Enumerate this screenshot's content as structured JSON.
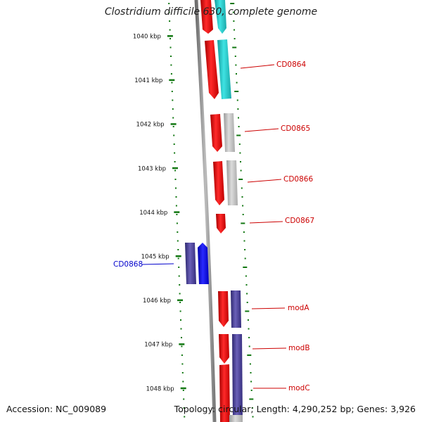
{
  "title": "Clostridium difficile 630, complete genome",
  "accession": "Accession: NC_009089",
  "topology": "Topology: circular; Length: 4,290,252 bp; Genes: 3,926",
  "colors": {
    "cds_forward": "#ee0000",
    "cyan_track": "#22cccc",
    "gray_track": "#bbbbbb",
    "navy_track": "#4a3f96",
    "blue_gene": "#0000ee",
    "tick_green": "#117711",
    "backbone": "#8c8c8c",
    "label_red": "#cc0000",
    "label_blue": "#0000cc"
  },
  "scale": {
    "ticks": [
      {
        "kbp": 1040,
        "label": "1040 kbp"
      },
      {
        "kbp": 1041,
        "label": "1041 kbp"
      },
      {
        "kbp": 1042,
        "label": "1042 kbp"
      },
      {
        "kbp": 1043,
        "label": "1043 kbp"
      },
      {
        "kbp": 1044,
        "label": "1044 kbp"
      },
      {
        "kbp": 1045,
        "label": "1045 kbp"
      },
      {
        "kbp": 1046,
        "label": "1046 kbp"
      },
      {
        "kbp": 1047,
        "label": "1047 kbp"
      },
      {
        "kbp": 1048,
        "label": "1048 kbp"
      }
    ]
  },
  "gene_labels": [
    {
      "name": "CD0864",
      "color": "red"
    },
    {
      "name": "CD0865",
      "color": "red"
    },
    {
      "name": "CD0866",
      "color": "red"
    },
    {
      "name": "CD0867",
      "color": "red"
    },
    {
      "name": "CD0868",
      "color": "blue"
    },
    {
      "name": "modA",
      "color": "red"
    },
    {
      "name": "modB",
      "color": "red"
    },
    {
      "name": "modC",
      "color": "red"
    }
  ]
}
